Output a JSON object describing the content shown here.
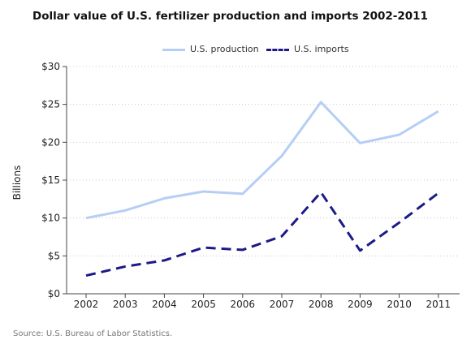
{
  "chart_data": {
    "type": "line",
    "title": "Dollar value of U.S. fertilizer production and imports 2002-2011",
    "xlabel": "",
    "ylabel": "Billions",
    "x": [
      "2002",
      "2003",
      "2004",
      "2005",
      "2006",
      "2007",
      "2008",
      "2009",
      "2010",
      "2011"
    ],
    "ylim": [
      0,
      30
    ],
    "yticks": [
      "$0",
      "$5",
      "$10",
      "$15",
      "$20",
      "$25",
      "$30"
    ],
    "grid": true,
    "legend_position": "top-center",
    "series": [
      {
        "name": "U.S. production",
        "style": "solid",
        "color": "#b5cef5",
        "values": [
          10.0,
          11.0,
          12.6,
          13.5,
          13.2,
          18.2,
          25.3,
          19.9,
          21.0,
          24.1
        ]
      },
      {
        "name": "U.S. imports",
        "style": "dashed",
        "color": "#1c1a86",
        "values": [
          2.4,
          3.6,
          4.4,
          6.1,
          5.8,
          7.6,
          13.4,
          5.7,
          9.4,
          13.3
        ]
      }
    ],
    "source": "Source: U.S. Bureau of Labor Statistics."
  }
}
